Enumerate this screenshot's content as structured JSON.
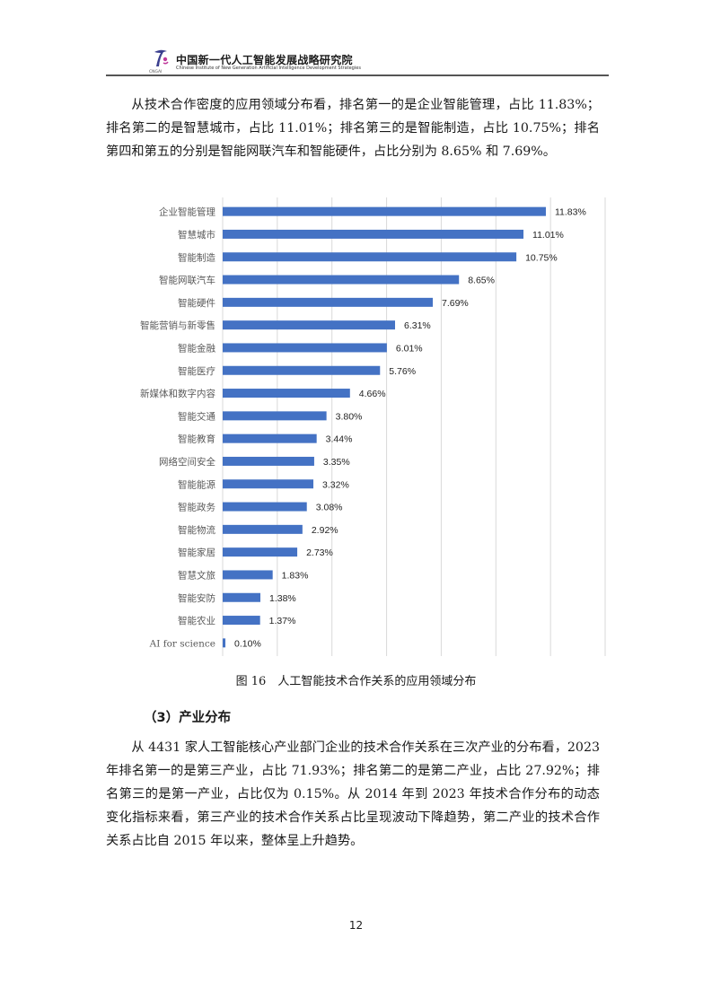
{
  "header": {
    "logo_text": "CNGAI",
    "title": "中国新一代人工智能发展战略研究院",
    "subtitle": "Chinese Institute of New Generation Artificial Intelligence Development Strategies"
  },
  "paragraphs": {
    "p1": "从技术合作密度的应用领域分布看，排名第一的是企业智能管理，占比 11.83%；排名第二的是智慧城市，占比 11.01%；排名第三的是智能制造，占比 10.75%；排名第四和第五的分别是智能网联汽车和智能硬件，占比分别为 8.65% 和 7.69%。",
    "p2": "从 4431 家人工智能核心产业部门企业的技术合作关系在三次产业的分布看，2023 年排名第一的是第三产业，占比 71.93%；排名第二的是第二产业，占比 27.92%；排名第三的是第一产业，占比仅为 0.15%。从 2014 年到 2023 年技术合作分布的动态变化指标来看，第三产业的技术合作关系占比呈现波动下降趋势，第二产业的技术合作关系占比自 2015 年以来，整体呈上升趋势。"
  },
  "figure": {
    "caption": "图 16　人工智能技术合作关系的应用领域分布"
  },
  "section": {
    "heading": "（3）产业分布"
  },
  "page_number": "12",
  "colors": {
    "bar": "#4472C4",
    "grid": "#d9d9d9"
  },
  "chart_data": {
    "type": "bar",
    "orientation": "horizontal",
    "categories": [
      "企业智能管理",
      "智慧城市",
      "智能制造",
      "智能网联汽车",
      "智能硬件",
      "智能营销与新零售",
      "智能金融",
      "智能医疗",
      "新媒体和数字内容",
      "智能交通",
      "智能教育",
      "网络空间安全",
      "智能能源",
      "智能政务",
      "智能物流",
      "智能家居",
      "智慧文旅",
      "智能安防",
      "智能农业",
      "AI for science"
    ],
    "values": [
      11.83,
      11.01,
      10.75,
      8.65,
      7.69,
      6.31,
      6.01,
      5.76,
      4.66,
      3.8,
      3.44,
      3.35,
      3.32,
      3.08,
      2.92,
      2.73,
      1.83,
      1.38,
      1.37,
      0.1
    ],
    "value_labels": [
      "11.83%",
      "11.01%",
      "10.75%",
      "8.65%",
      "7.69%",
      "6.31%",
      "6.01%",
      "5.76%",
      "4.66%",
      "3.80%",
      "3.44%",
      "3.35%",
      "3.32%",
      "3.08%",
      "2.92%",
      "2.73%",
      "1.83%",
      "1.38%",
      "1.37%",
      "0.10%"
    ],
    "xlim": [
      0,
      14
    ],
    "grid": true,
    "legend": "none"
  }
}
